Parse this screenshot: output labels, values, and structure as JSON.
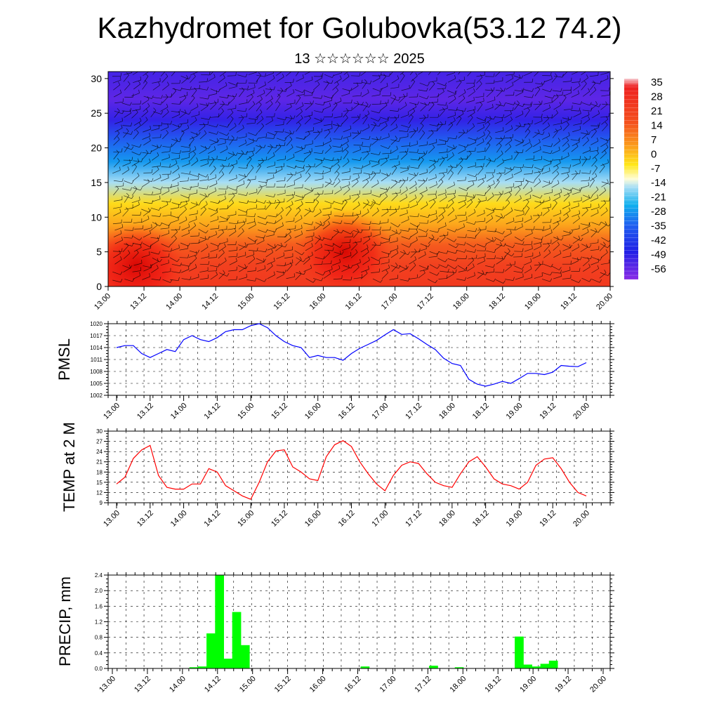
{
  "title": "Kazhydromet for Golubovka(53.12 74.2)",
  "subtitle": "13 ☆☆☆☆☆☆ 2025",
  "time_labels": [
    "13.00",
    "13.12",
    "14.00",
    "14.12",
    "15.00",
    "15.12",
    "16.00",
    "16.12",
    "17.00",
    "17.12",
    "18.00",
    "18.12",
    "19.00",
    "19.12",
    "20.00"
  ],
  "colors": {
    "pmsl_line": "#0000ff",
    "temp_line": "#ff0000",
    "precip_bar": "#00ff00"
  },
  "chart_data": [
    {
      "type": "heatmap",
      "name": "upper-air temperature and wind cross-section",
      "x": "time_labels",
      "y_ticks": [
        0,
        5,
        10,
        15,
        20,
        25,
        30
      ],
      "ylim": [
        0,
        31
      ],
      "colorbar": {
        "labels": [
          35,
          28,
          21,
          14,
          7,
          0,
          -7,
          -14,
          -21,
          -28,
          -35,
          -42,
          -49,
          -56
        ],
        "range": [
          -60,
          37
        ]
      },
      "profiles": [
        {
          "level": 0,
          "value": 28
        },
        {
          "level": 3,
          "value": 26
        },
        {
          "level": 6,
          "value": 20
        },
        {
          "level": 9,
          "value": 12
        },
        {
          "level": 12,
          "value": 4
        },
        {
          "level": 15,
          "value": -14
        },
        {
          "level": 18,
          "value": -25
        },
        {
          "level": 21,
          "value": -35
        },
        {
          "level": 24,
          "value": -50
        },
        {
          "level": 27,
          "value": -55
        },
        {
          "level": 31,
          "value": -52
        }
      ],
      "warm_cores": [
        {
          "x": 0.4,
          "y": 3,
          "value": 33
        },
        {
          "x": 3.3,
          "y": 5,
          "value": 35
        },
        {
          "x": 8.2,
          "y": 3,
          "value": 30
        },
        {
          "x": 9.7,
          "y": 3,
          "value": 32
        }
      ]
    },
    {
      "type": "line",
      "ylabel": "PMSL",
      "y_ticks": [
        1002,
        1005,
        1008,
        1011,
        1014,
        1017,
        1020
      ],
      "ylim": [
        1002,
        1020
      ],
      "series": [
        {
          "values": [
            1014,
            1014.5,
            1014.5,
            1012.5,
            1011.5,
            1012.5,
            1013.5,
            1013,
            1016,
            1017,
            1016,
            1015.5,
            1016.5,
            1018,
            1018.5,
            1018.5,
            1019.5,
            1020,
            1019,
            1017,
            1015.5,
            1014.5,
            1014,
            1011.5,
            1012,
            1011.5,
            1011.5,
            1010.8,
            1012.5,
            1013.8,
            1014.8,
            1015.8,
            1017.2,
            1018.5,
            1017.3,
            1017.5,
            1016.2,
            1014.8,
            1013.5,
            1011.3,
            1010,
            1009.5,
            1006,
            1004.8,
            1004.3,
            1004.8,
            1005.5,
            1005,
            1006.2,
            1007.5,
            1007.5,
            1007.2,
            1007.8,
            1009.5,
            1009.3,
            1009.2,
            1010.2
          ]
        }
      ]
    },
    {
      "type": "line",
      "ylabel": "TEMP at 2 M",
      "y_ticks": [
        9,
        12,
        15,
        18,
        21,
        24,
        27,
        30
      ],
      "ylim": [
        9,
        30
      ],
      "series": [
        {
          "values": [
            14.5,
            16.5,
            22,
            24.5,
            25.8,
            17,
            13.5,
            13,
            13,
            14.5,
            14.5,
            19,
            18,
            14,
            12.5,
            11,
            10,
            15,
            21,
            24.2,
            24.5,
            19.5,
            18,
            16,
            15.5,
            22.5,
            26,
            27.2,
            25.5,
            21,
            17.5,
            14.5,
            12.5,
            17,
            20,
            21,
            20.5,
            17.5,
            15,
            14,
            13.5,
            17.5,
            21,
            22.5,
            19.5,
            16,
            14.5,
            14,
            13,
            15,
            20,
            21.8,
            22.2,
            19,
            15,
            12,
            11
          ]
        }
      ]
    },
    {
      "type": "bar",
      "ylabel": "PRECIP, mm",
      "y_ticks": [
        0.0,
        0.4,
        0.8,
        1.2,
        1.6,
        2.0,
        2.4
      ],
      "ylim": [
        0,
        2.4
      ],
      "values": [
        0,
        0,
        0,
        0,
        0,
        0,
        0,
        0,
        0,
        0.03,
        0.05,
        0.9,
        2.4,
        0.25,
        1.45,
        0.6,
        0,
        0,
        0,
        0,
        0,
        0,
        0,
        0,
        0,
        0,
        0,
        0,
        0,
        0.05,
        0,
        0,
        0,
        0,
        0,
        0,
        0,
        0.07,
        0,
        0,
        0.03,
        0,
        0,
        0,
        0,
        0,
        0,
        0.82,
        0.1,
        0.05,
        0.12,
        0.2,
        0,
        0,
        0,
        0,
        0
      ]
    }
  ]
}
